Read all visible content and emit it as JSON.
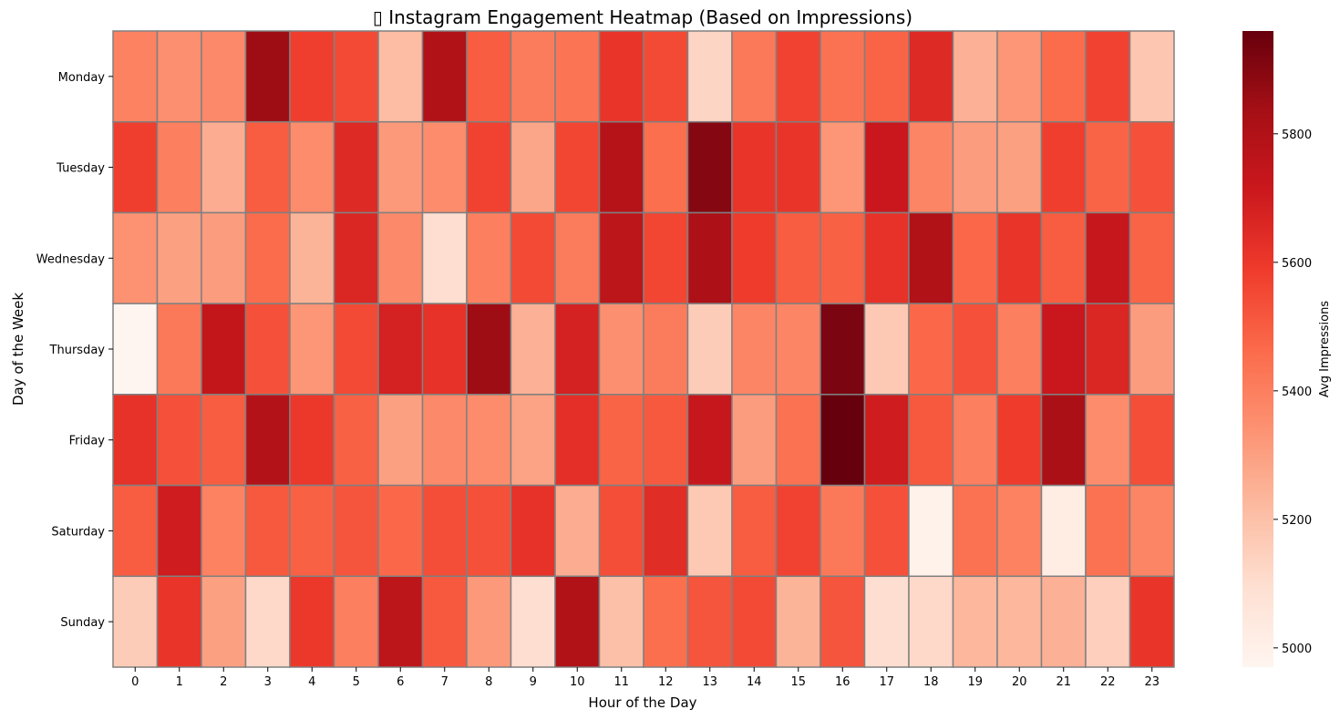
{
  "chart_data": {
    "type": "heatmap",
    "title": "▯ Instagram Engagement Heatmap (Based on Impressions)",
    "xlabel": "Hour of the Day",
    "ylabel": "Day of the Week",
    "x_categories": [
      "0",
      "1",
      "2",
      "3",
      "4",
      "5",
      "6",
      "7",
      "8",
      "9",
      "10",
      "11",
      "12",
      "13",
      "14",
      "15",
      "16",
      "17",
      "18",
      "19",
      "20",
      "21",
      "22",
      "23"
    ],
    "y_categories": [
      "Monday",
      "Tuesday",
      "Wednesday",
      "Thursday",
      "Friday",
      "Saturday",
      "Sunday"
    ],
    "values": [
      [
        5390,
        5350,
        5370,
        5850,
        5580,
        5550,
        5210,
        5800,
        5500,
        5410,
        5430,
        5610,
        5550,
        5130,
        5420,
        5570,
        5440,
        5480,
        5650,
        5250,
        5330,
        5460,
        5570,
        5180
      ],
      [
        5580,
        5400,
        5260,
        5500,
        5360,
        5650,
        5320,
        5360,
        5570,
        5280,
        5560,
        5780,
        5450,
        5900,
        5610,
        5610,
        5330,
        5720,
        5380,
        5310,
        5300,
        5580,
        5480,
        5530
      ],
      [
        5340,
        5300,
        5310,
        5460,
        5240,
        5660,
        5370,
        5100,
        5400,
        5550,
        5410,
        5760,
        5560,
        5810,
        5590,
        5500,
        5490,
        5620,
        5800,
        5470,
        5610,
        5500,
        5730,
        5480
      ],
      [
        4970,
        5420,
        5740,
        5530,
        5330,
        5550,
        5680,
        5620,
        5850,
        5250,
        5680,
        5350,
        5410,
        5160,
        5380,
        5380,
        5920,
        5170,
        5470,
        5530,
        5400,
        5720,
        5660,
        5310
      ],
      [
        5620,
        5530,
        5500,
        5790,
        5600,
        5490,
        5300,
        5370,
        5360,
        5290,
        5630,
        5480,
        5510,
        5730,
        5310,
        5440,
        5960,
        5700,
        5510,
        5400,
        5590,
        5820,
        5360,
        5540
      ],
      [
        5500,
        5700,
        5390,
        5510,
        5490,
        5520,
        5470,
        5540,
        5530,
        5620,
        5260,
        5540,
        5640,
        5170,
        5500,
        5570,
        5420,
        5530,
        4990,
        5440,
        5390,
        5020,
        5440,
        5380
      ],
      [
        5160,
        5610,
        5300,
        5120,
        5600,
        5400,
        5760,
        5510,
        5320,
        5100,
        5800,
        5200,
        5450,
        5520,
        5550,
        5240,
        5520,
        5100,
        5120,
        5230,
        5230,
        5250,
        5150,
        5610
      ]
    ],
    "colorbar": {
      "label": "Avg Impressions",
      "vmin": 4970,
      "vmax": 5960,
      "ticks": [
        5000,
        5200,
        5400,
        5600,
        5800
      ],
      "colormap": "Reds"
    },
    "grid": "gray cell borders",
    "colors": {
      "cell_border": "#808080",
      "colormap_stops": [
        "#fff5f0",
        "#fee0d2",
        "#fcbba1",
        "#fc9272",
        "#fb6a4a",
        "#ef3b2c",
        "#cb181d",
        "#a50f15",
        "#67000d"
      ]
    }
  }
}
